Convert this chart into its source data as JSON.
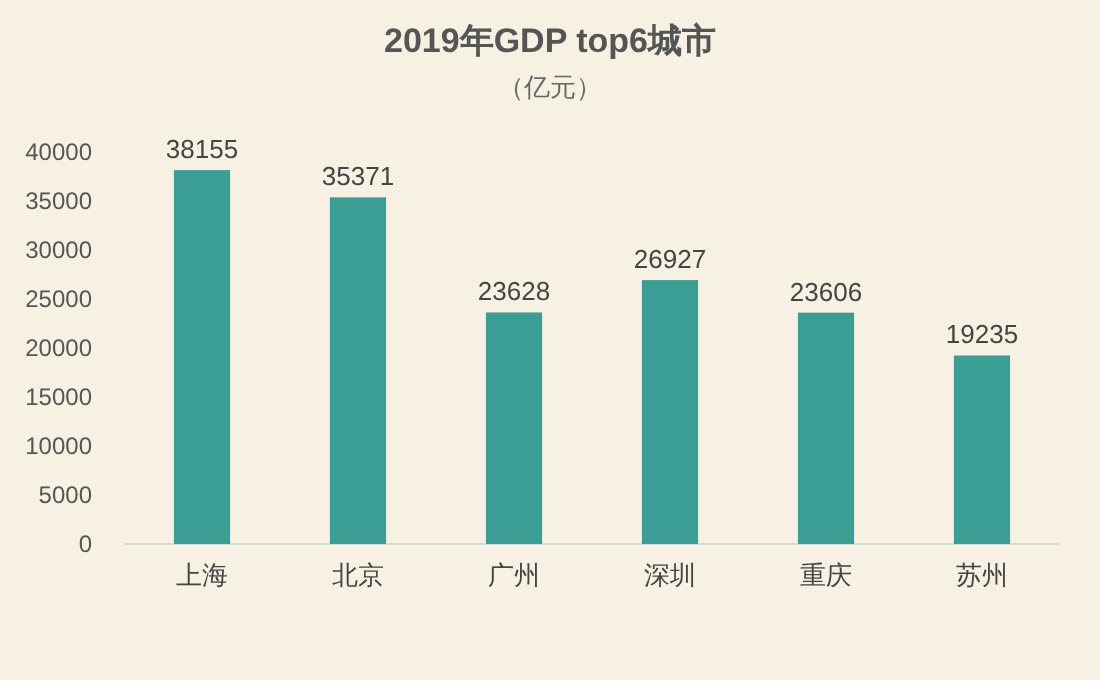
{
  "chart_data": {
    "type": "bar",
    "title": "2019年GDP top6城市",
    "subtitle": "（亿元）",
    "categories": [
      "上海",
      "北京",
      "广州",
      "深圳",
      "重庆",
      "苏州"
    ],
    "values": [
      38155,
      35371,
      23628,
      26927,
      23606,
      19235
    ],
    "color": "#3a9e94",
    "ylim": [
      0,
      40000
    ],
    "yticks": [
      0,
      5000,
      10000,
      15000,
      20000,
      25000,
      30000,
      35000,
      40000
    ],
    "data_labels": true
  }
}
